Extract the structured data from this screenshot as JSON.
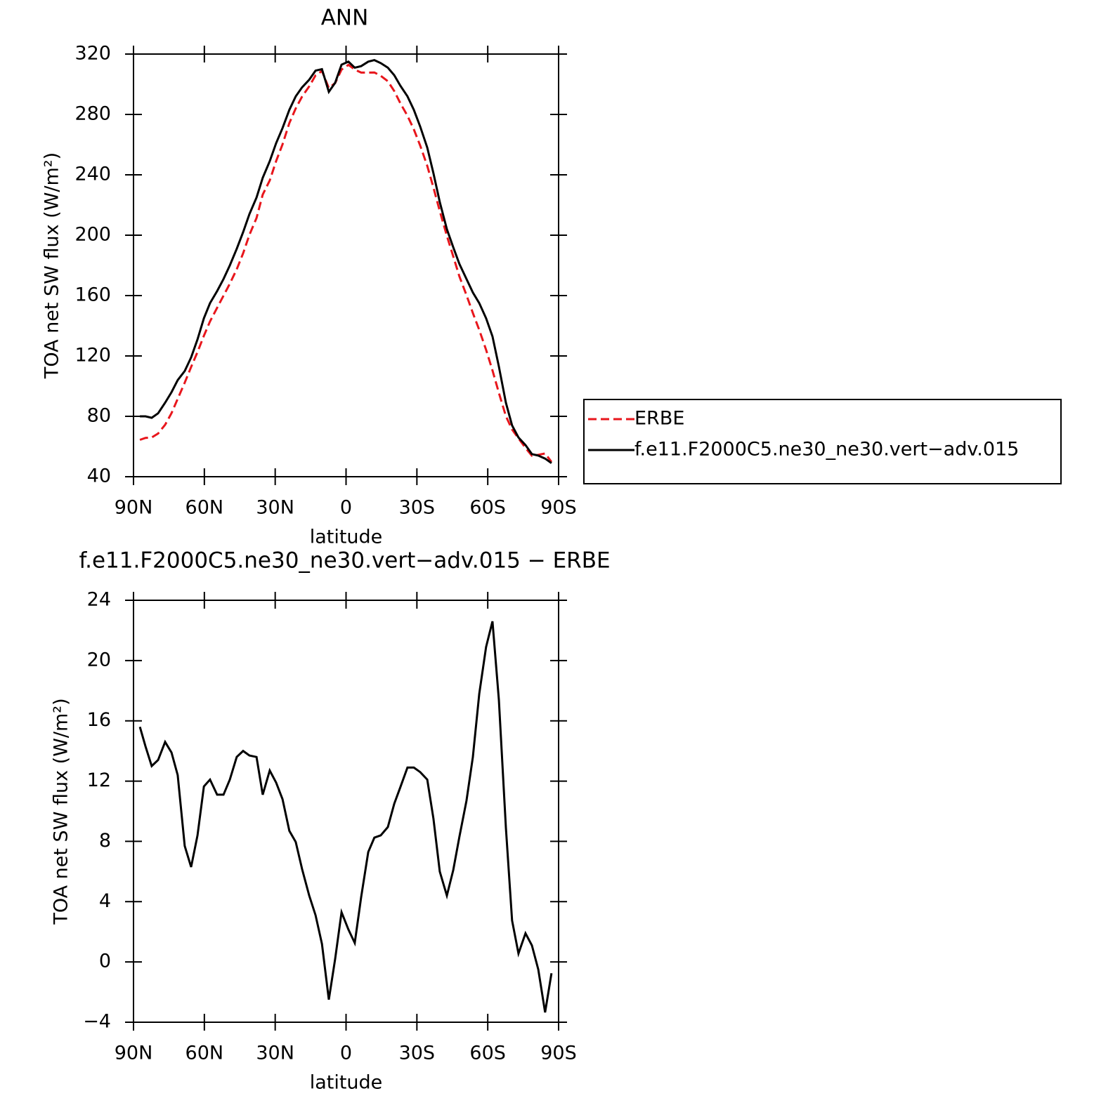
{
  "chart_data": [
    {
      "type": "line",
      "title": "ANN",
      "xlabel": "latitude",
      "ylabel": "TOA net SW flux (W/m²)",
      "x": [
        87.3,
        84.9,
        82.3,
        79.6,
        76.6,
        73.9,
        71.3,
        68.3,
        65.6,
        62.9,
        60.2,
        57.6,
        54.6,
        51.9,
        49.2,
        46.3,
        43.6,
        40.9,
        37.9,
        35.3,
        32.3,
        29.6,
        26.9,
        24.0,
        21.3,
        18.6,
        15.6,
        12.9,
        10.2,
        7.3,
        4.6,
        1.9,
        -1.0,
        -3.7,
        -6.4,
        -9.4,
        -12.0,
        -14.7,
        -17.7,
        -20.4,
        -23.0,
        -26.0,
        -28.7,
        -31.4,
        -34.4,
        -37.0,
        -39.7,
        -42.7,
        -45.4,
        -48.0,
        -51.0,
        -53.7,
        -56.4,
        -59.3,
        -62.0,
        -64.7,
        -67.7,
        -70.3,
        -73.0,
        -76.0,
        -78.7,
        -81.4,
        -84.3,
        -87.0
      ],
      "series": [
        {
          "name": "ERBE",
          "color": "#e8161c",
          "style": "dashed",
          "values": [
            64.4,
            65.7,
            66,
            68.6,
            74.4,
            82.1,
            91.6,
            102.3,
            112.7,
            122.6,
            133.4,
            142.9,
            151.9,
            159.9,
            167.9,
            177.4,
            188,
            200.3,
            211.4,
            226.9,
            236.3,
            249.1,
            260.2,
            274.3,
            284,
            291.9,
            298.6,
            305.9,
            308.8,
            297.5,
            300.8,
            309.7,
            312.9,
            309.7,
            307.7,
            307.7,
            307.8,
            305.6,
            302,
            295.5,
            287.4,
            279.1,
            270.1,
            259.4,
            245.9,
            231.5,
            216,
            199.6,
            185.9,
            172.7,
            160.3,
            148.4,
            137.2,
            124.1,
            110.4,
            95.6,
            80.1,
            71.3,
            65.4,
            59.1,
            53.9,
            54.5,
            55.4,
            49.8
          ]
        },
        {
          "name": "f.e11.F2000C5.ne30_ne30.vert−adv.015",
          "color": "#000000",
          "style": "solid",
          "values": [
            80,
            80,
            79,
            82,
            89,
            96,
            104,
            110,
            119,
            131,
            145,
            155,
            163,
            171,
            180,
            191,
            202,
            214,
            225,
            238,
            249,
            261,
            271,
            283,
            292,
            298,
            303,
            309,
            310,
            295,
            301,
            313,
            315,
            311,
            312,
            315,
            316,
            314,
            311,
            306,
            299,
            292,
            283,
            272,
            258,
            241,
            222,
            204,
            192,
            181,
            171,
            162,
            155,
            145,
            133,
            113,
            89,
            74,
            66,
            61,
            55,
            54,
            52,
            49
          ]
        }
      ],
      "xlim": [
        90,
        -90
      ],
      "xticks": [
        {
          "value": 90,
          "label": "90N"
        },
        {
          "value": 60,
          "label": "60N"
        },
        {
          "value": 30,
          "label": "30N"
        },
        0,
        {
          "value": -30,
          "label": "30S"
        },
        {
          "value": -60,
          "label": "60S"
        },
        {
          "value": -90,
          "label": "90S"
        }
      ],
      "ylim": [
        40,
        320
      ],
      "yticks": [
        40,
        80,
        120,
        160,
        200,
        240,
        280,
        320
      ],
      "legend": "right"
    },
    {
      "type": "line",
      "title": "f.e11.F2000C5.ne30_ne30.vert−adv.015 − ERBE",
      "xlabel": "latitude",
      "ylabel": "TOA net SW flux (W/m²)",
      "x": [
        87.3,
        84.9,
        82.3,
        79.6,
        76.6,
        73.9,
        71.3,
        68.3,
        65.6,
        62.9,
        60.2,
        57.6,
        54.6,
        51.9,
        49.2,
        46.3,
        43.6,
        40.9,
        37.9,
        35.3,
        32.3,
        29.6,
        26.9,
        24.0,
        21.3,
        18.6,
        15.6,
        12.9,
        10.2,
        7.3,
        4.6,
        1.9,
        -1.0,
        -3.7,
        -6.4,
        -9.4,
        -12.0,
        -14.7,
        -17.7,
        -20.4,
        -23.0,
        -26.0,
        -28.7,
        -31.4,
        -34.4,
        -37.0,
        -39.7,
        -42.7,
        -45.4,
        -48.0,
        -51.0,
        -53.7,
        -56.4,
        -59.3,
        -62.0,
        -64.7,
        -67.7,
        -70.3,
        -73.0,
        -76.0,
        -78.7,
        -81.4,
        -84.3,
        -87.0
      ],
      "color": "#000000",
      "values": [
        15.6,
        14.3,
        13.0,
        13.4,
        14.6,
        13.9,
        12.4,
        7.7,
        6.3,
        8.4,
        11.65,
        12.1,
        11.1,
        11.1,
        12.1,
        13.6,
        14.0,
        13.7,
        13.6,
        11.1,
        12.7,
        11.9,
        10.8,
        8.7,
        7.96,
        6.15,
        4.4,
        3.1,
        1.2,
        -2.5,
        0.2,
        3.3,
        2.15,
        1.26,
        4.3,
        7.3,
        8.25,
        8.4,
        8.95,
        10.5,
        11.6,
        12.9,
        12.9,
        12.6,
        12.1,
        9.5,
        6.0,
        4.4,
        6.1,
        8.3,
        10.7,
        13.6,
        17.8,
        20.9,
        22.6,
        17.4,
        8.9,
        2.75,
        0.56,
        1.9,
        1.1,
        -0.5,
        -3.35,
        -0.75
      ],
      "xlim": [
        90,
        -90
      ],
      "xticks": [
        {
          "value": 90,
          "label": "90N"
        },
        {
          "value": 60,
          "label": "60N"
        },
        {
          "value": 30,
          "label": "30N"
        },
        0,
        {
          "value": -30,
          "label": "30S"
        },
        {
          "value": -60,
          "label": "60S"
        },
        {
          "value": -90,
          "label": "90S"
        }
      ],
      "ylim": [
        -4,
        24
      ],
      "yticks": [
        {
          "value": -4,
          "label": "−4"
        },
        0,
        4,
        8,
        12,
        16,
        20,
        24
      ]
    }
  ]
}
